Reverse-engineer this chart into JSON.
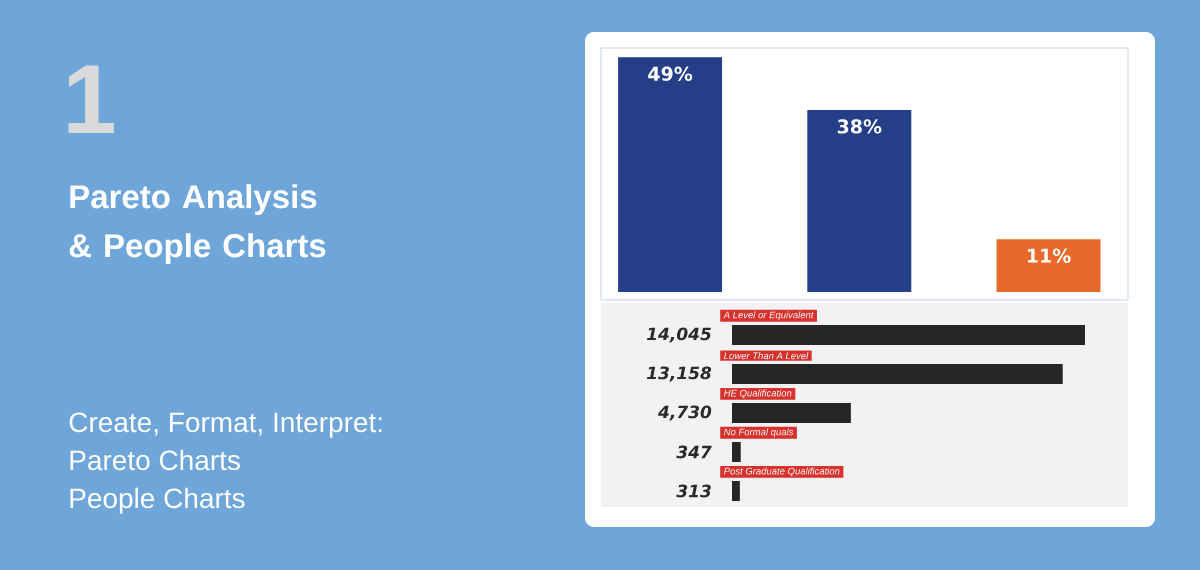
{
  "chart_data": [
    {
      "type": "other",
      "title": "Pareto Analysis & People Charts",
      "subtitle": "Create, Format, Interpret:",
      "annotations": [
        "1",
        "Pareto Charts",
        "People Charts"
      ]
    },
    {
      "type": "bar",
      "categories": [
        null,
        null,
        null
      ],
      "values": [
        49,
        38,
        11
      ],
      "colors": [
        "#243f88",
        "#243f88",
        "#e8692a"
      ],
      "value_labels": [
        "49%",
        "38%",
        "11%"
      ]
    },
    {
      "type": "bar",
      "orientation": "horizontal",
      "categories": [
        "A Level or Equivalent",
        "Lower Than A Level",
        "HE Qualification",
        "No Formal quals",
        "Post Graduate Qualification"
      ],
      "values": [
        14045,
        13158,
        4730,
        347,
        313
      ],
      "color": "#262626",
      "value_labels": [
        "14,045",
        "13,158",
        "4,730",
        "347",
        "313"
      ]
    }
  ]
}
